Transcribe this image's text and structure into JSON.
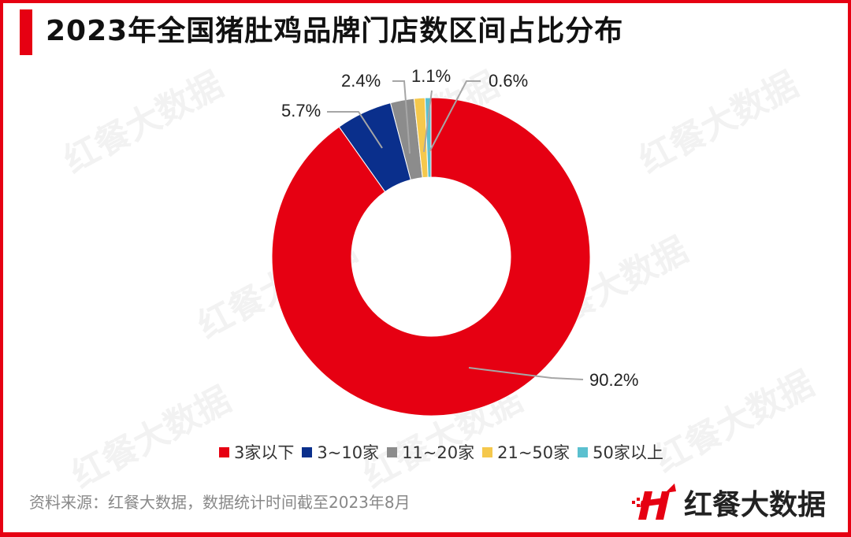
{
  "title": "2023年全国猪肚鸡品牌门店数区间占比分布",
  "watermark_text": "红餐大数据",
  "source": "资料来源：红餐大数据，数据统计时间截至2023年8月",
  "logo": {
    "text": "红餐大数据",
    "icon": "hongcan-logo-icon"
  },
  "colors": {
    "accent": "#e60012",
    "border": "#e60012"
  },
  "legend": [
    {
      "label": "3家以下",
      "color": "#e60012"
    },
    {
      "label": "3~10家",
      "color": "#0a2f8c"
    },
    {
      "label": "11~20家",
      "color": "#8c8c8c"
    },
    {
      "label": "21~50家",
      "color": "#f5c84c"
    },
    {
      "label": "50家以上",
      "color": "#5bc0cf"
    }
  ],
  "labels": {
    "s0": "90.2%",
    "s1": "5.7%",
    "s2": "2.4%",
    "s3": "1.1%",
    "s4": "0.6%"
  },
  "chart_data": {
    "type": "pie",
    "subtype": "donut",
    "title": "2023年全国猪肚鸡品牌门店数区间占比分布",
    "categories": [
      "3家以下",
      "3~10家",
      "11~20家",
      "21~50家",
      "50家以上"
    ],
    "values": [
      90.2,
      5.7,
      2.4,
      1.1,
      0.6
    ],
    "unit": "%",
    "colors": [
      "#e60012",
      "#0a2f8c",
      "#8c8c8c",
      "#f5c84c",
      "#5bc0cf"
    ],
    "legend_position": "bottom",
    "start_angle": "12 o'clock, clockwise"
  }
}
